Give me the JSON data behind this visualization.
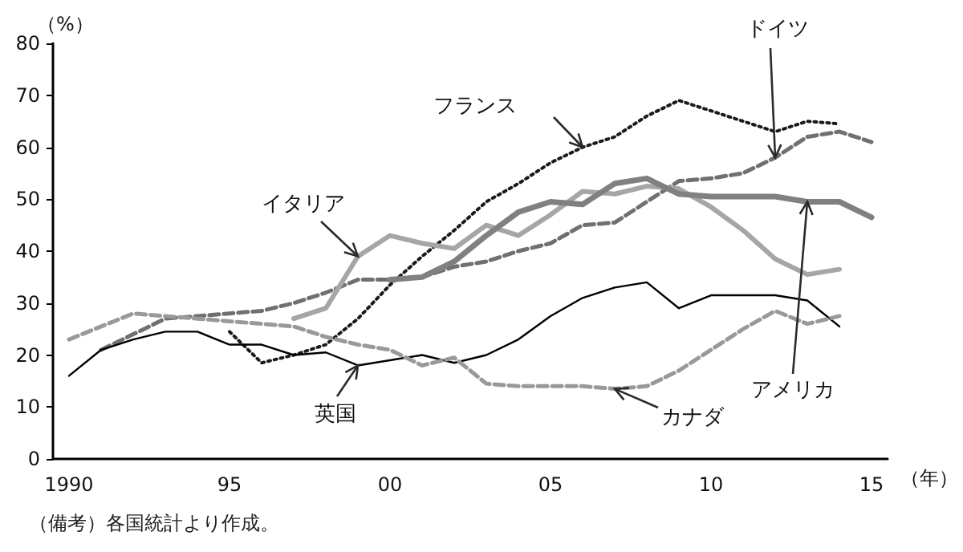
{
  "chart_data": {
    "type": "line",
    "xlabel": "（年）",
    "ylabel": "（%）",
    "xlim": [
      1989.5,
      2015.5
    ],
    "ylim": [
      0,
      80
    ],
    "xticks": [
      {
        "value": 1990,
        "label": "1990"
      },
      {
        "value": 1995,
        "label": "95"
      },
      {
        "value": 2000,
        "label": "00"
      },
      {
        "value": 2005,
        "label": "05"
      },
      {
        "value": 2010,
        "label": "10"
      },
      {
        "value": 2015,
        "label": "15"
      }
    ],
    "yticks": [
      0,
      10,
      20,
      30,
      40,
      50,
      60,
      70,
      80
    ],
    "grid": false,
    "legend": false,
    "marker": "none",
    "series": [
      {
        "name": "フランス",
        "color": "#1a1a1a",
        "line_style": "dotted",
        "x": [
          1995,
          1996,
          1997,
          1998,
          1999,
          2000,
          2001,
          2002,
          2003,
          2004,
          2005,
          2006,
          2007,
          2008,
          2009,
          2010,
          2011,
          2012,
          2013,
          2014
        ],
        "values": [
          24.5,
          18.5,
          20,
          22,
          27,
          33.5,
          39,
          44,
          49.5,
          53,
          57,
          60,
          62,
          66,
          69,
          67,
          65,
          63,
          65,
          64.5
        ]
      },
      {
        "name": "ドイツ",
        "color": "#707070",
        "line_style": "dashed",
        "x": [
          1991,
          1992,
          1993,
          1994,
          1995,
          1996,
          1997,
          1998,
          1999,
          2000,
          2001,
          2002,
          2003,
          2004,
          2005,
          2006,
          2007,
          2008,
          2009,
          2010,
          2011,
          2012,
          2013,
          2014,
          2015
        ],
        "values": [
          21,
          24,
          27,
          27.5,
          28,
          28.5,
          30,
          32,
          34.5,
          34.5,
          35,
          37,
          38,
          40,
          41.5,
          45,
          45.5,
          49.5,
          53.5,
          54,
          55,
          58,
          62,
          63,
          61
        ]
      },
      {
        "name": "イタリア",
        "color": "#a6a6a6",
        "line_style": "solid",
        "x": [
          1997,
          1998,
          1999,
          2000,
          2001,
          2002,
          2003,
          2004,
          2005,
          2006,
          2007,
          2008,
          2009,
          2010,
          2011,
          2012,
          2013,
          2014
        ],
        "values": [
          27,
          29,
          39,
          43,
          41.5,
          40.5,
          45,
          43,
          47,
          51.5,
          51,
          52.5,
          52,
          48.5,
          44,
          38.5,
          35.5,
          36.5
        ]
      },
      {
        "name": "アメリカ",
        "color": "#808080",
        "line_style": "solid",
        "x": [
          2000,
          2001,
          2002,
          2003,
          2004,
          2005,
          2006,
          2007,
          2008,
          2009,
          2010,
          2011,
          2012,
          2013,
          2014,
          2015
        ],
        "values": [
          34.5,
          35,
          38,
          43,
          47.5,
          49.5,
          49,
          53,
          54,
          51,
          50.5,
          50.5,
          50.5,
          49.5,
          49.5,
          46.5
        ]
      },
      {
        "name": "英国",
        "color": "#000000",
        "line_style": "solid",
        "x": [
          1990,
          1991,
          1992,
          1993,
          1994,
          1995,
          1996,
          1997,
          1998,
          1999,
          2000,
          2001,
          2002,
          2003,
          2004,
          2005,
          2006,
          2007,
          2008,
          2009,
          2010,
          2011,
          2012,
          2013,
          2014
        ],
        "values": [
          16,
          21,
          23,
          24.5,
          24.5,
          22,
          22,
          20,
          20.5,
          18,
          19,
          20,
          18.5,
          20,
          23,
          27.5,
          31,
          33,
          34,
          29,
          31.5,
          31.5,
          31.5,
          30.5,
          25.5
        ]
      },
      {
        "name": "カナダ",
        "color": "#999999",
        "line_style": "dashed",
        "x": [
          1990,
          1991,
          1992,
          1993,
          1994,
          1995,
          1996,
          1997,
          1998,
          1999,
          2000,
          2001,
          2002,
          2003,
          2004,
          2005,
          2006,
          2007,
          2008,
          2009,
          2010,
          2011,
          2012,
          2013,
          2014
        ],
        "values": [
          23,
          25.5,
          28,
          27.5,
          27,
          26.5,
          26,
          25.5,
          23.5,
          22,
          21,
          18,
          19.5,
          14.5,
          14,
          14,
          14,
          13.5,
          14,
          17,
          21,
          25,
          28.5,
          26,
          27.5
        ]
      }
    ],
    "annotations": [
      "（備考）各国統計より作成。"
    ]
  }
}
